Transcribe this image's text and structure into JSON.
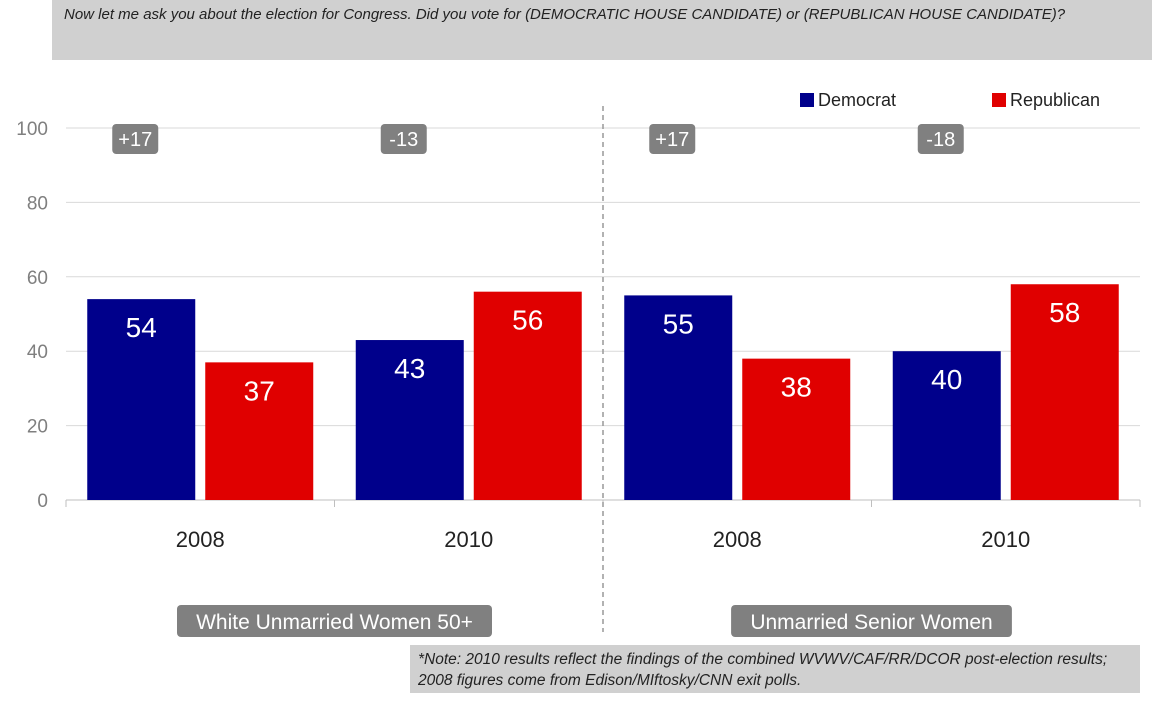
{
  "question": "Now let me ask you about the election for Congress. Did you vote for (DEMOCRATIC HOUSE CANDIDATE) or (REPUBLICAN HOUSE CANDIDATE)?",
  "note": "*Note: 2010 results reflect the findings of the combined WVWV/CAF/RR/DCOR post-election results; 2008 figures come from Edison/MIftosky/CNN exit polls.",
  "colors": {
    "democrat": "#00008b",
    "republican": "#e00000",
    "badge": "#808080",
    "grid": "#d9d9d9",
    "axis": "#bfbfbf"
  },
  "chart_data": {
    "type": "bar",
    "yticks": [
      "0",
      "20",
      "40",
      "60",
      "80",
      "100"
    ],
    "ylim": [
      0,
      100
    ],
    "grid": true,
    "legend_position": "top-right",
    "series": [
      {
        "name": "Democrat",
        "color": "#00008b"
      },
      {
        "name": "Republican",
        "color": "#e00000"
      }
    ],
    "groups": [
      {
        "label": "White Unmarried Women 50+",
        "categories": [
          {
            "label": "2008",
            "values": [
              54,
              37
            ],
            "labels": [
              "54",
              "37"
            ],
            "margin": "+17"
          },
          {
            "label": "2010",
            "values": [
              43,
              56
            ],
            "labels": [
              "43",
              "56"
            ],
            "margin": "-13"
          }
        ]
      },
      {
        "label": "Unmarried Senior Women",
        "categories": [
          {
            "label": "2008",
            "values": [
              55,
              38
            ],
            "labels": [
              "55",
              "38"
            ],
            "margin": "+17"
          },
          {
            "label": "2010",
            "values": [
              40,
              58
            ],
            "labels": [
              "40",
              "58"
            ],
            "margin": "-18"
          }
        ]
      }
    ]
  }
}
